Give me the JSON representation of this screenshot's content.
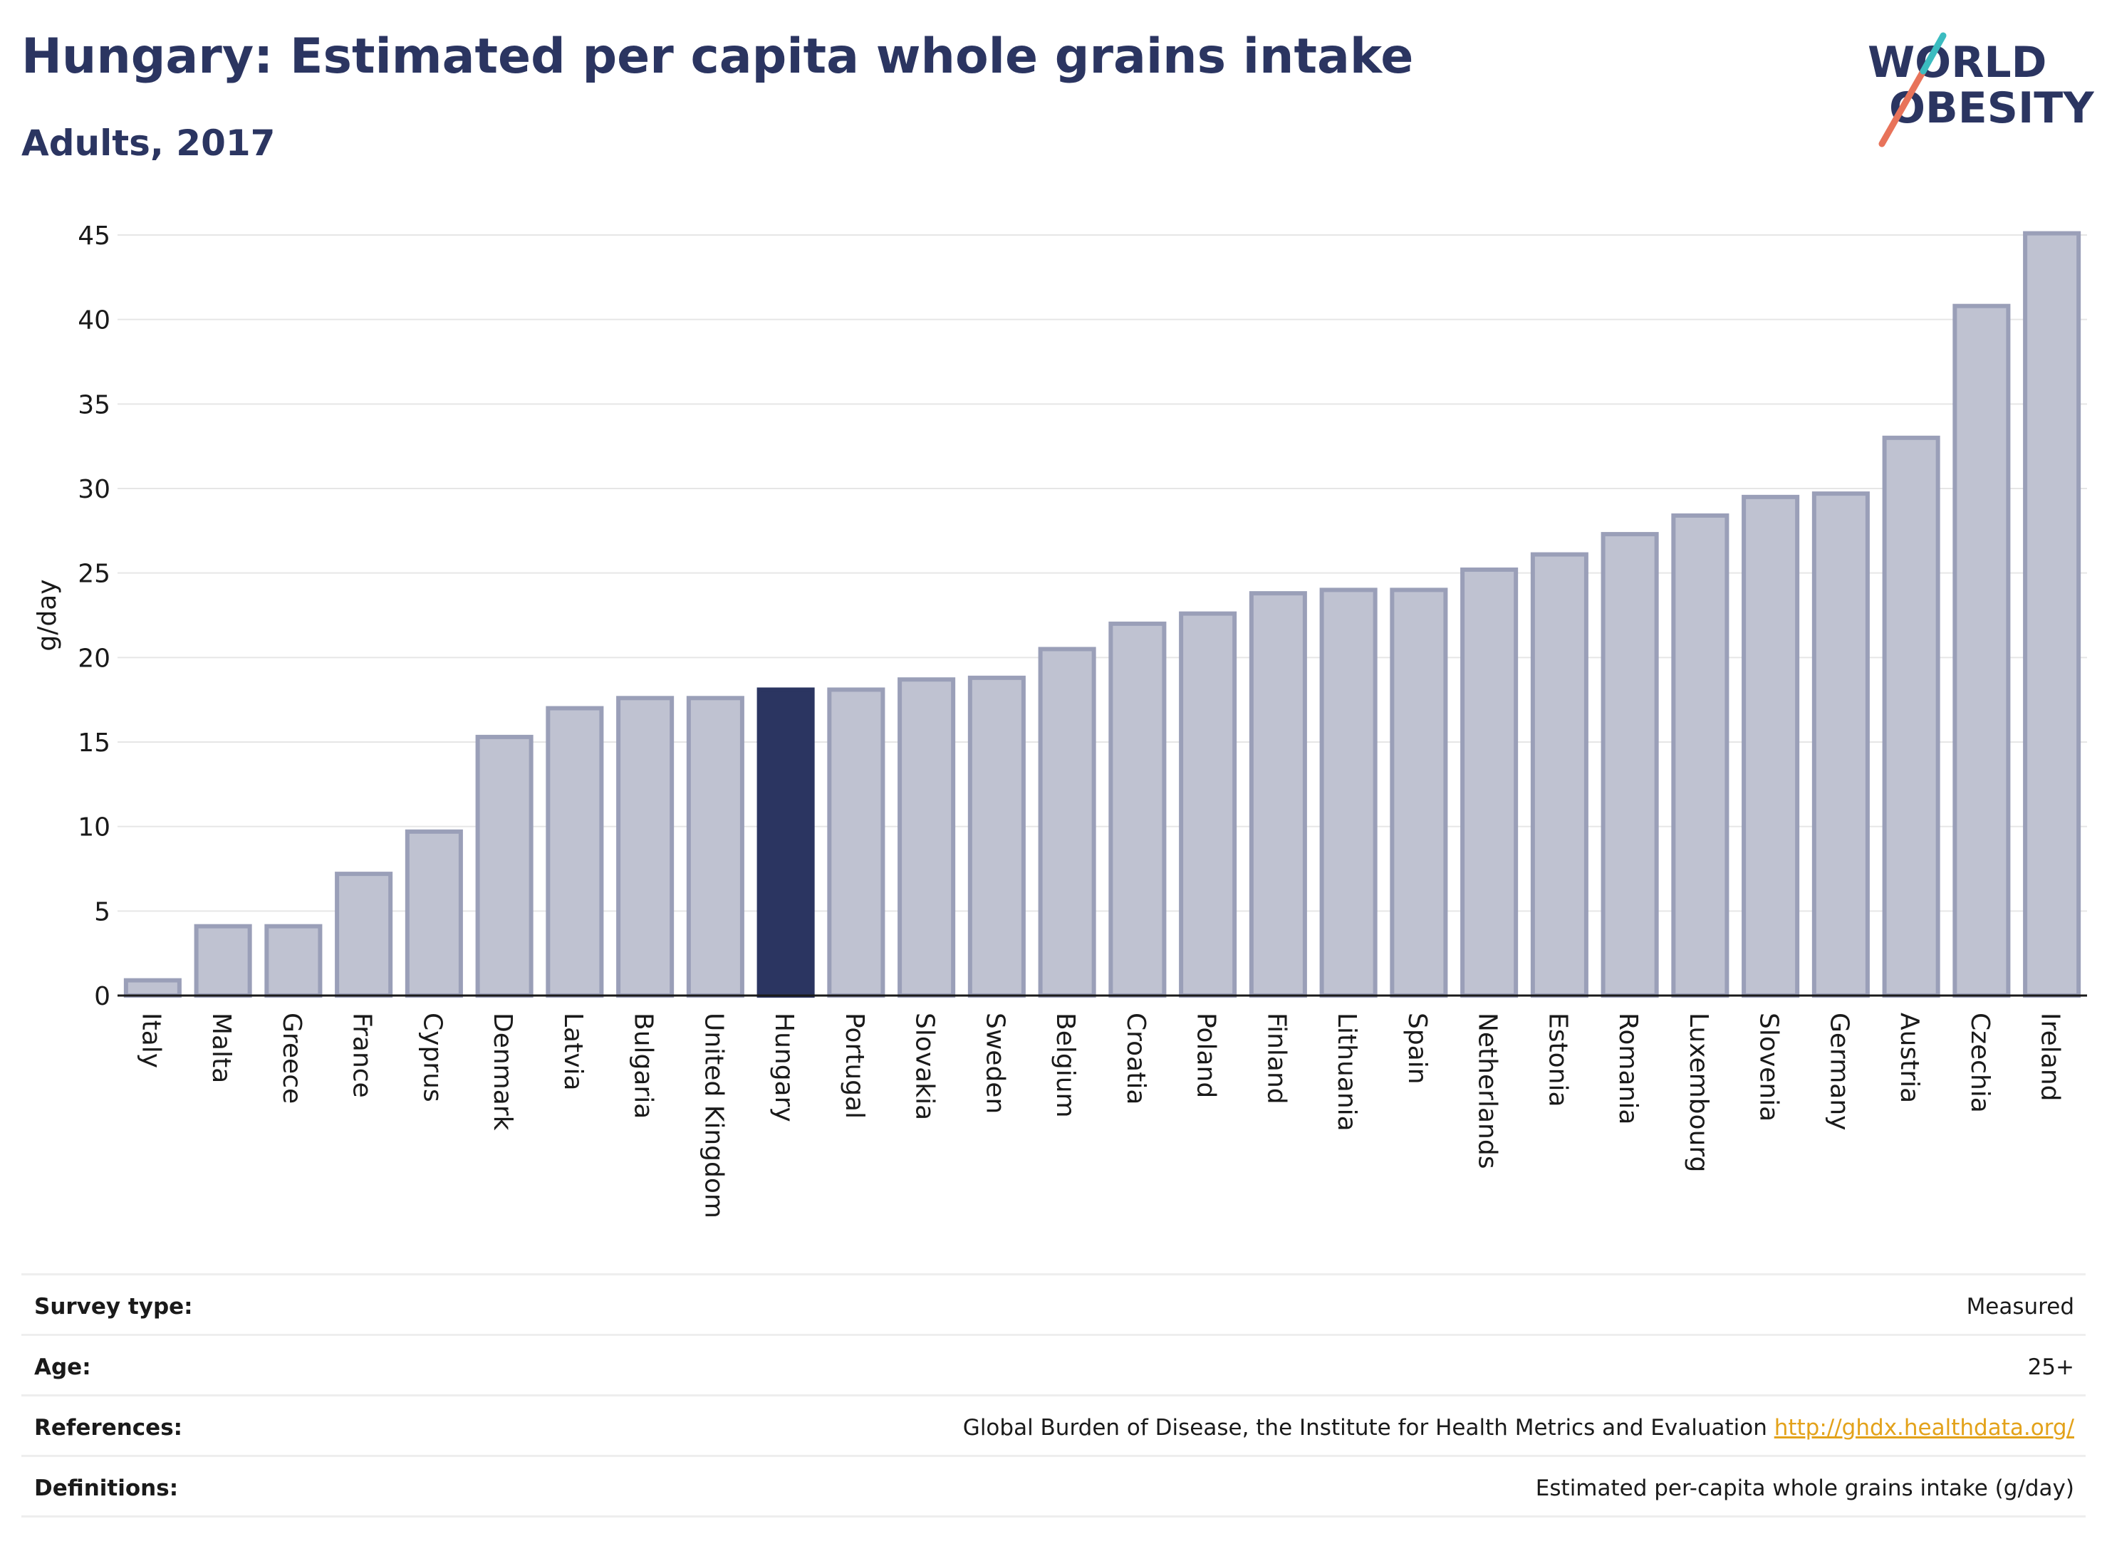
{
  "header": {
    "title": "Hungary: Estimated per capita whole grains intake",
    "subtitle": "Adults, 2017"
  },
  "logo": {
    "line1": "WORLD",
    "line2": "OBESITY",
    "text_color": "#2b3561",
    "slash_colors": [
      "#e8735a",
      "#3bbcc0"
    ]
  },
  "chart_data": {
    "type": "bar",
    "title": "Hungary: Estimated per capita whole grains intake",
    "subtitle": "Adults, 2017",
    "xlabel": "",
    "ylabel": "g/day",
    "ylim": [
      0,
      45
    ],
    "yticks": [
      0,
      5,
      10,
      15,
      20,
      25,
      30,
      35,
      40,
      45
    ],
    "grid": true,
    "highlight": "Hungary",
    "colors": {
      "bar": "#bfc2d1",
      "bar_border": "#9a9fb8",
      "highlight": "#2b3561"
    },
    "categories": [
      "Italy",
      "Malta",
      "Greece",
      "France",
      "Cyprus",
      "Denmark",
      "Latvia",
      "Bulgaria",
      "United Kingdom",
      "Hungary",
      "Portugal",
      "Slovakia",
      "Sweden",
      "Belgium",
      "Croatia",
      "Poland",
      "Finland",
      "Lithuania",
      "Spain",
      "Netherlands",
      "Estonia",
      "Romania",
      "Luxembourg",
      "Slovenia",
      "Germany",
      "Austria",
      "Czechia",
      "Ireland"
    ],
    "values": [
      0.9,
      4.1,
      4.1,
      7.2,
      9.7,
      15.3,
      17.0,
      17.6,
      17.6,
      18.1,
      18.1,
      18.7,
      18.8,
      20.5,
      22.0,
      22.6,
      23.8,
      24.0,
      24.0,
      25.2,
      26.1,
      27.3,
      28.4,
      29.5,
      29.7,
      33.0,
      40.8,
      45.1
    ]
  },
  "info": {
    "rows": [
      {
        "label": "Survey type:",
        "value": "Measured"
      },
      {
        "label": "Age:",
        "value": "25+"
      },
      {
        "label": "References:",
        "value": "Global Burden of Disease, the Institute for Health Metrics and Evaluation",
        "link": "http://ghdx.healthdata.org/"
      },
      {
        "label": "Definitions:",
        "value": "Estimated per-capita whole grains intake (g/day)"
      }
    ]
  }
}
